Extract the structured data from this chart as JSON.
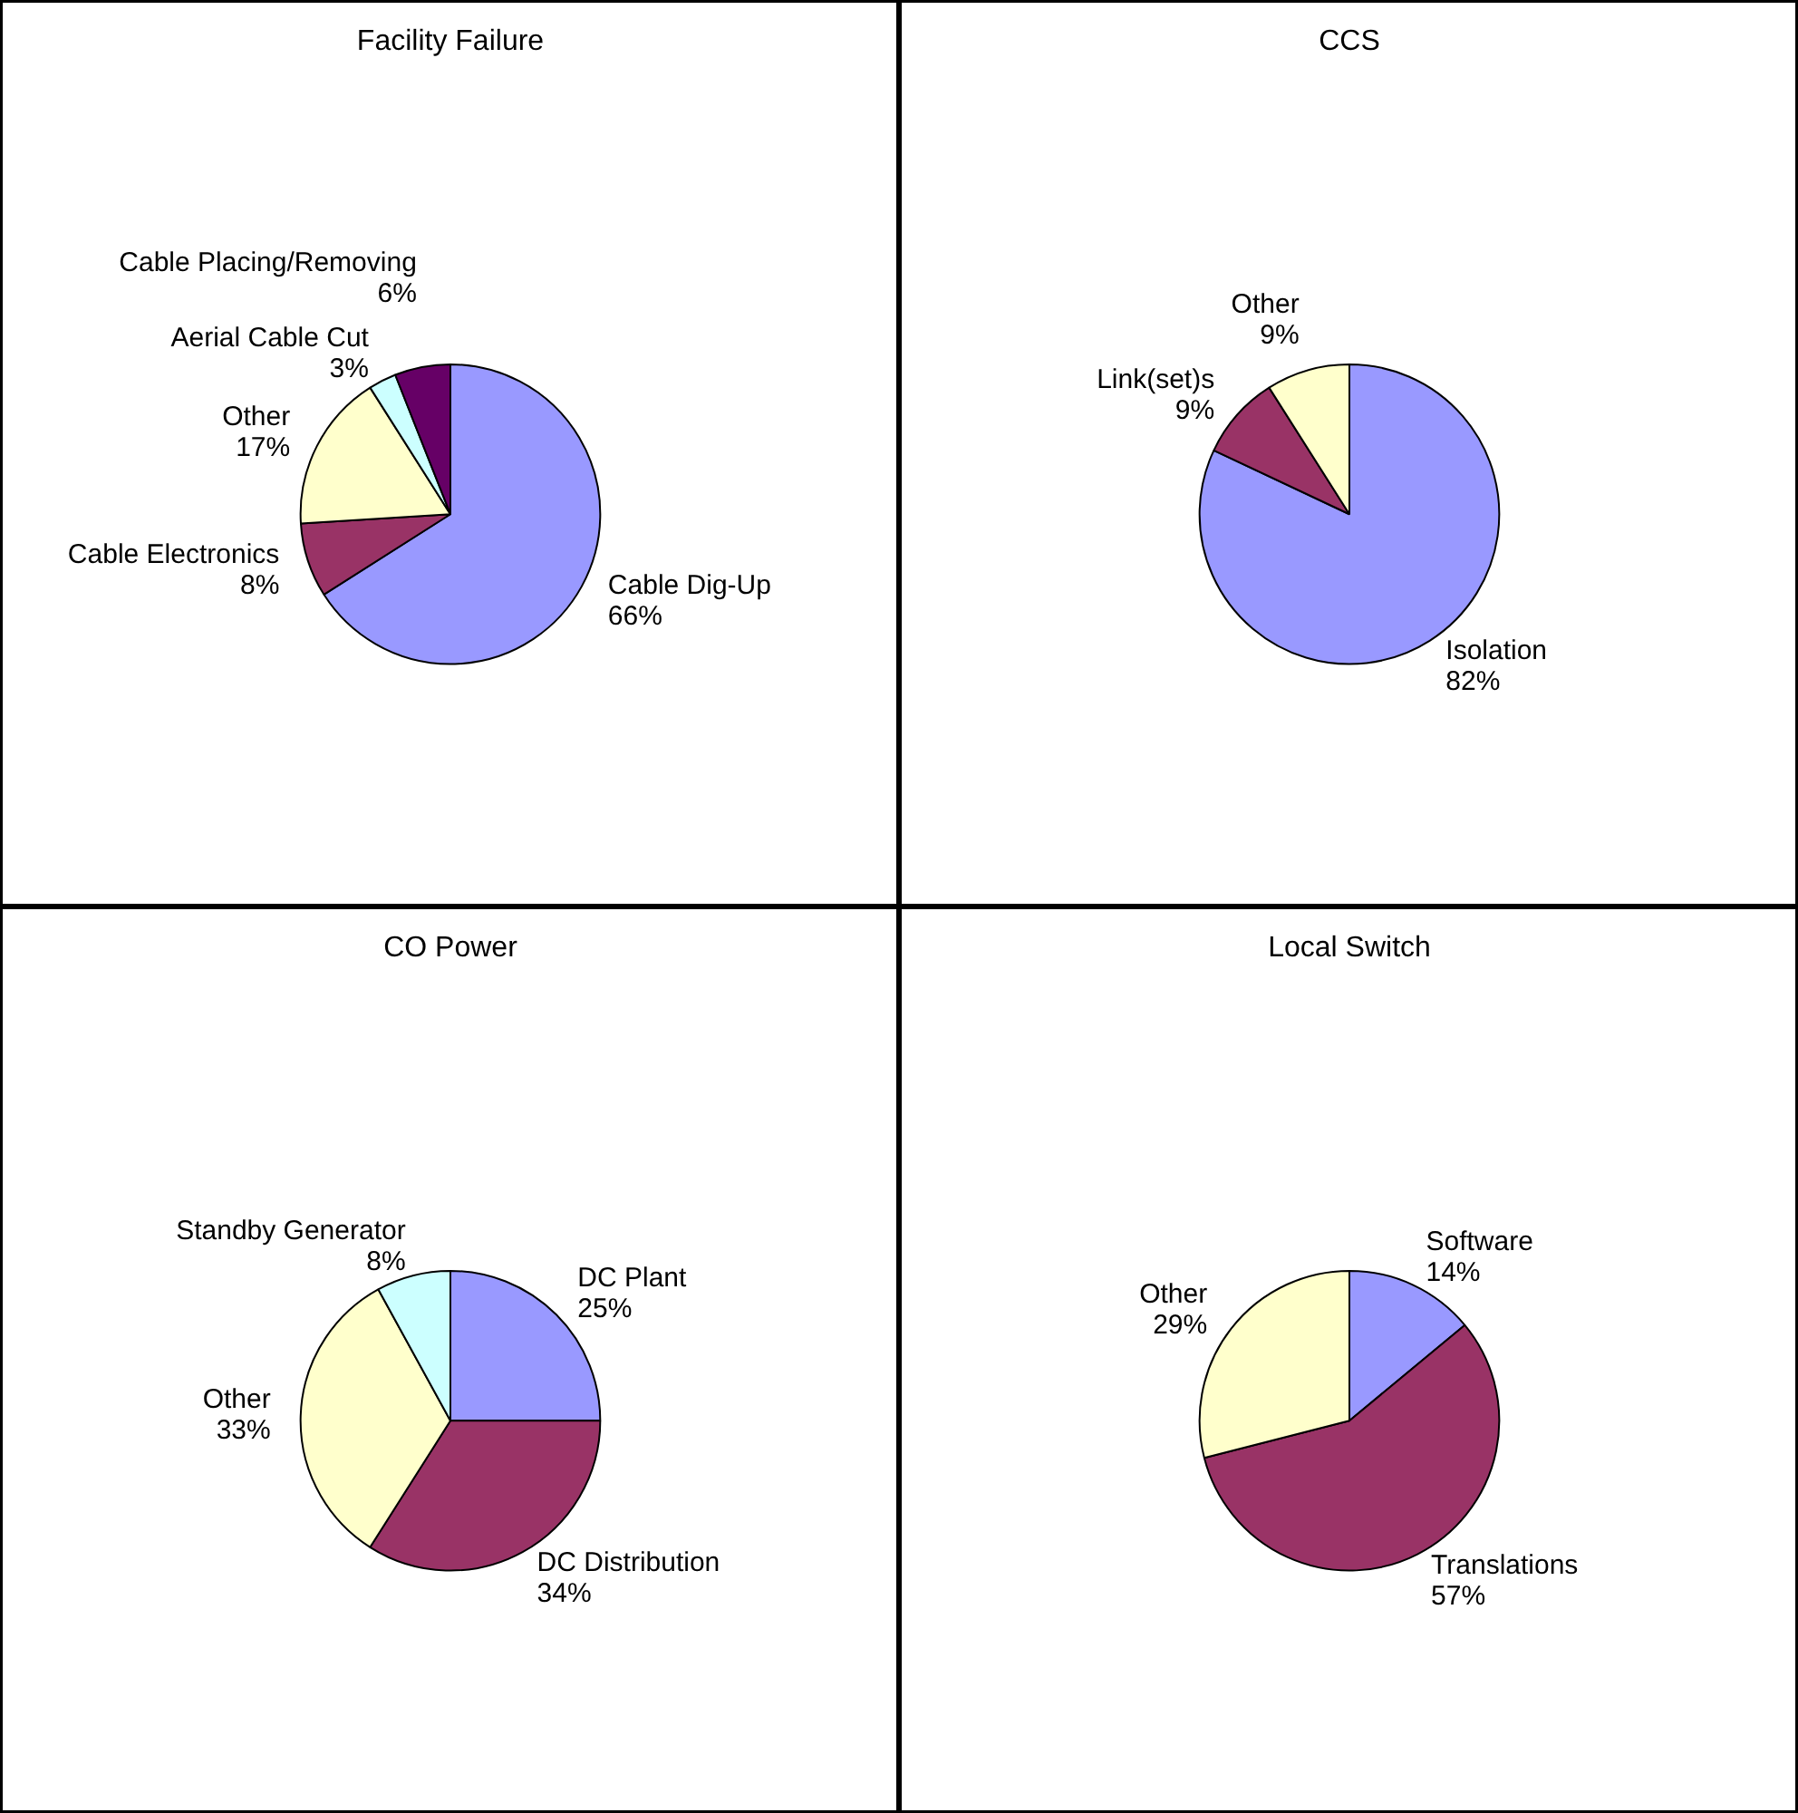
{
  "chart_data": [
    {
      "type": "pie",
      "title": "Facility Failure",
      "categories": [
        "Cable Dig-Up",
        "Cable Electronics",
        "Other",
        "Aerial Cable Cut",
        "Cable Placing/Removing"
      ],
      "values": [
        66,
        8,
        17,
        3,
        6
      ],
      "colors": [
        "#9999ff",
        "#993366",
        "#ffffcc",
        "#ccffff",
        "#660066"
      ],
      "value_labels": [
        "66%",
        "8%",
        "17%",
        "3%",
        "6%"
      ]
    },
    {
      "type": "pie",
      "title": "CCS",
      "categories": [
        "Isolation",
        "Link(set)s",
        "Other"
      ],
      "values": [
        82,
        9,
        9
      ],
      "colors": [
        "#9999ff",
        "#993366",
        "#ffffcc"
      ],
      "value_labels": [
        "82%",
        "9%",
        "9%"
      ]
    },
    {
      "type": "pie",
      "title": "CO Power",
      "categories": [
        "DC Plant",
        "DC Distribution",
        "Other",
        "Standby Generator"
      ],
      "values": [
        25,
        34,
        33,
        8
      ],
      "colors": [
        "#9999ff",
        "#993366",
        "#ffffcc",
        "#ccffff"
      ],
      "value_labels": [
        "25%",
        "34%",
        "33%",
        "8%"
      ]
    },
    {
      "type": "pie",
      "title": "Local Switch",
      "categories": [
        "Software",
        "Translations",
        "Other"
      ],
      "values": [
        14,
        57,
        29
      ],
      "colors": [
        "#9999ff",
        "#993366",
        "#ffffcc"
      ],
      "value_labels": [
        "14%",
        "57%",
        "29%"
      ]
    }
  ]
}
